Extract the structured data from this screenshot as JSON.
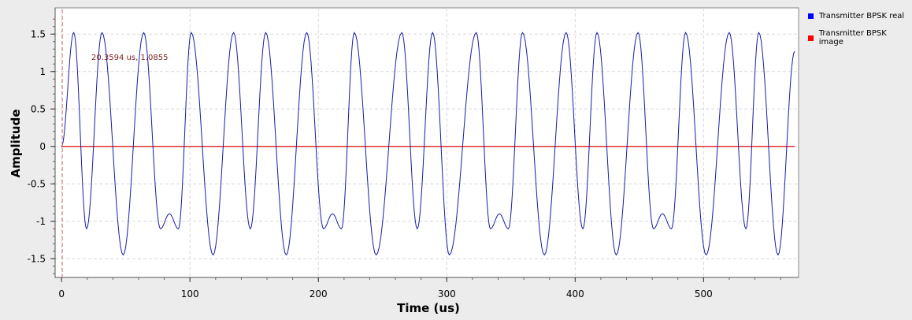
{
  "chart_data": {
    "type": "line",
    "title": "",
    "xlabel": "Time (us)",
    "ylabel": "Amplitude",
    "xlim": [
      -5,
      574
    ],
    "ylim": [
      -1.75,
      1.85
    ],
    "xticks": [
      0,
      100,
      200,
      300,
      400,
      500
    ],
    "yticks": [
      -1.5,
      -1,
      -0.5,
      0,
      0.5,
      1,
      1.5
    ],
    "x_minor_step": 20,
    "y_minor_step": 0.1,
    "grid": true,
    "legend_position": "right",
    "series": [
      {
        "name": "Transmitter BPSK real",
        "color": "#0000ff",
        "line_color": "#1a1aa8",
        "points": [
          [
            0,
            0
          ],
          [
            9.5,
            1.52
          ],
          [
            19.5,
            -1.1
          ],
          [
            31.5,
            1.52
          ],
          [
            48,
            -1.45
          ],
          [
            64,
            1.52
          ],
          [
            77,
            -1.1
          ],
          [
            84,
            -0.9
          ],
          [
            91,
            -1.1
          ],
          [
            101,
            1.52
          ],
          [
            118,
            -1.45
          ],
          [
            134,
            1.52
          ],
          [
            147,
            -1.1
          ],
          [
            159,
            1.52
          ],
          [
            175,
            -1.45
          ],
          [
            191,
            1.52
          ],
          [
            204,
            -1.1
          ],
          [
            211,
            -0.9
          ],
          [
            218,
            -1.1
          ],
          [
            228,
            1.52
          ],
          [
            245,
            -1.45
          ],
          [
            265,
            1.52
          ],
          [
            277,
            -1.1
          ],
          [
            289,
            1.52
          ],
          [
            302,
            -1.45
          ],
          [
            323,
            1.52
          ],
          [
            334,
            -1.1
          ],
          [
            341,
            -0.9
          ],
          [
            348,
            -1.1
          ],
          [
            359,
            1.52
          ],
          [
            376,
            -1.45
          ],
          [
            393,
            1.52
          ],
          [
            406,
            -1.1
          ],
          [
            417,
            1.52
          ],
          [
            432,
            -1.45
          ],
          [
            449,
            1.52
          ],
          [
            461,
            -1.1
          ],
          [
            468,
            -0.9
          ],
          [
            475,
            -1.1
          ],
          [
            486,
            1.52
          ],
          [
            502,
            -1.45
          ],
          [
            520,
            1.52
          ],
          [
            533,
            -1.1
          ],
          [
            543,
            1.52
          ],
          [
            558,
            -1.45
          ],
          [
            571,
            1.27
          ]
        ]
      },
      {
        "name": "Transmitter BPSK image",
        "color": "#ff0000",
        "line_color": "#e03030",
        "points": [
          [
            0,
            0
          ],
          [
            571,
            0
          ]
        ]
      }
    ],
    "marker": {
      "x": 0,
      "label": "20.3594 us, 1.0855"
    }
  }
}
